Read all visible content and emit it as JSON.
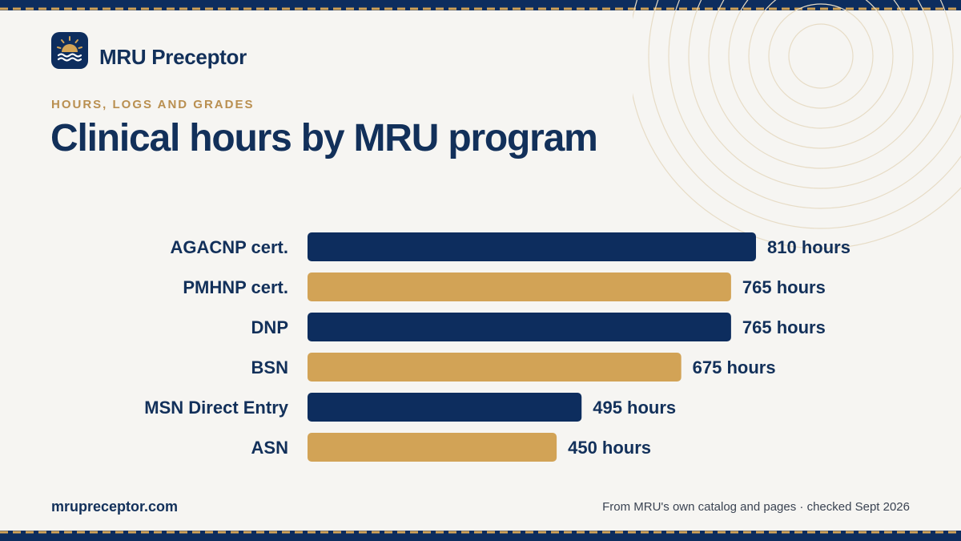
{
  "brand": {
    "name": "MRU Preceptor",
    "logo_icon": "sun-over-waves-icon"
  },
  "header": {
    "eyebrow": "HOURS, LOGS AND GRADES",
    "title": "Clinical hours by MRU program"
  },
  "colors": {
    "navy": "#0d2d5e",
    "gold": "#d2a356",
    "text": "#12305a",
    "background": "#f6f5f2"
  },
  "chart_data": {
    "type": "bar",
    "orientation": "horizontal",
    "categories": [
      "AGACNP cert.",
      "PMHNP cert.",
      "DNP",
      "BSN",
      "MSN Direct Entry",
      "ASN"
    ],
    "values": [
      810,
      765,
      765,
      675,
      495,
      450
    ],
    "value_labels": [
      "810 hours",
      "765 hours",
      "765 hours",
      "675 hours",
      "495 hours",
      "450 hours"
    ],
    "bar_colors": [
      "#0d2d5e",
      "#d2a356",
      "#0d2d5e",
      "#d2a356",
      "#0d2d5e",
      "#d2a356"
    ],
    "title": "Clinical hours by MRU program",
    "xlabel": "",
    "ylabel": "",
    "xlim": [
      0,
      810
    ],
    "grid": false,
    "legend": "none"
  },
  "footer": {
    "url": "mrupreceptor.com",
    "source": "From MRU's own catalog and pages · checked Sept 2026"
  }
}
